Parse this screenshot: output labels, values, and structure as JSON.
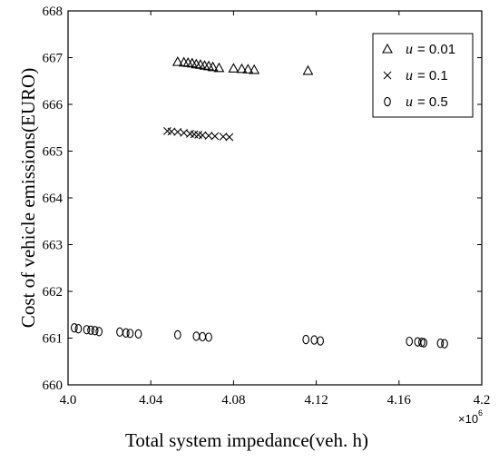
{
  "chart_data": {
    "type": "scatter",
    "title": "",
    "xlabel": "Total system impedance(veh. h)",
    "ylabel": "Cost of vehicle emissions(EURO)",
    "x_multiplier_label": "×10",
    "x_multiplier_exponent": "6",
    "xlim": [
      4.0,
      4.2
    ],
    "ylim": [
      660,
      668
    ],
    "x_ticks": [
      "4.0",
      "4.04",
      "4.08",
      "4.12",
      "4.16",
      "4.2"
    ],
    "y_ticks": [
      "660",
      "661",
      "662",
      "663",
      "664",
      "665",
      "666",
      "667",
      "668"
    ],
    "grid": false,
    "legend_position": "top-right",
    "series": [
      {
        "name": "u = 0.01",
        "legend_var": "u",
        "legend_value": "= 0.01",
        "marker": "triangle",
        "points": [
          [
            4.053,
            666.91
          ],
          [
            4.056,
            666.9
          ],
          [
            4.058,
            666.89
          ],
          [
            4.06,
            666.88
          ],
          [
            4.062,
            666.86
          ],
          [
            4.064,
            666.85
          ],
          [
            4.066,
            666.83
          ],
          [
            4.068,
            666.82
          ],
          [
            4.07,
            666.8
          ],
          [
            4.073,
            666.78
          ],
          [
            4.08,
            666.77
          ],
          [
            4.084,
            666.76
          ],
          [
            4.087,
            666.75
          ],
          [
            4.09,
            666.74
          ],
          [
            4.116,
            666.72
          ]
        ]
      },
      {
        "name": "u = 0.1",
        "legend_var": "u",
        "legend_value": "= 0.1",
        "marker": "x",
        "points": [
          [
            4.048,
            665.43
          ],
          [
            4.05,
            665.42
          ],
          [
            4.053,
            665.41
          ],
          [
            4.056,
            665.39
          ],
          [
            4.059,
            665.37
          ],
          [
            4.061,
            665.36
          ],
          [
            4.063,
            665.35
          ],
          [
            4.065,
            665.34
          ],
          [
            4.068,
            665.33
          ],
          [
            4.071,
            665.32
          ],
          [
            4.075,
            665.31
          ],
          [
            4.078,
            665.3
          ]
        ]
      },
      {
        "name": "u = 0.5",
        "legend_var": "u",
        "legend_value": "= 0.5",
        "marker": "diamond",
        "points": [
          [
            4.003,
            661.22
          ],
          [
            4.005,
            661.2
          ],
          [
            4.009,
            661.18
          ],
          [
            4.011,
            661.17
          ],
          [
            4.013,
            661.16
          ],
          [
            4.015,
            661.14
          ],
          [
            4.025,
            661.13
          ],
          [
            4.028,
            661.11
          ],
          [
            4.03,
            661.1
          ],
          [
            4.034,
            661.09
          ],
          [
            4.053,
            661.07
          ],
          [
            4.062,
            661.04
          ],
          [
            4.065,
            661.03
          ],
          [
            4.068,
            661.02
          ],
          [
            4.115,
            660.97
          ],
          [
            4.119,
            660.96
          ],
          [
            4.122,
            660.94
          ],
          [
            4.165,
            660.93
          ],
          [
            4.169,
            660.92
          ],
          [
            4.171,
            660.91
          ],
          [
            4.172,
            660.9
          ],
          [
            4.18,
            660.89
          ],
          [
            4.182,
            660.88
          ]
        ]
      }
    ]
  }
}
